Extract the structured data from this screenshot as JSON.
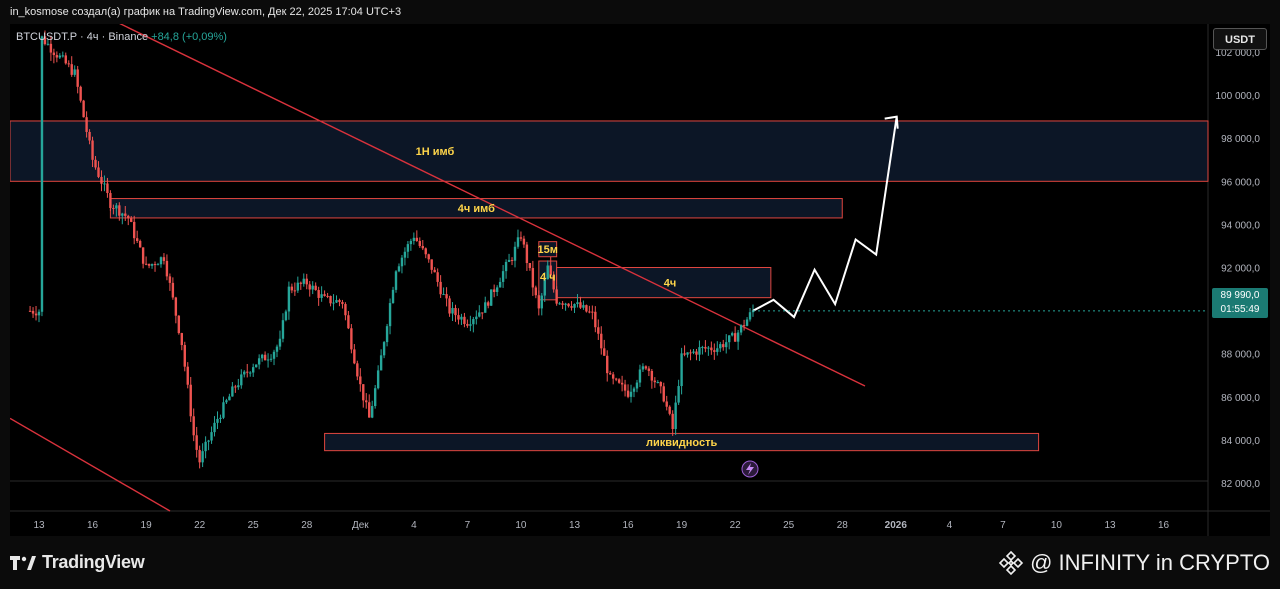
{
  "header": {
    "title": "in_kosmose создал(а) график на TradingView.com, Дек 22, 2025 17:04 UTC+3"
  },
  "symbol_bar": {
    "symbol": "BTCUSDT.P · 4ч · Binance",
    "change": "+84,8 (+0,09%)"
  },
  "currency_button": "USDT",
  "last_price": {
    "price": "89 990,0",
    "countdown": "01:55:49"
  },
  "footer": {
    "logo_text": "TradingView",
    "watermark": "@ INFINITY in CRYPTO"
  },
  "colors": {
    "up": "#26a69a",
    "down": "#ef5350",
    "zone_border": "#e0463f",
    "zone_fill": "#0c1626",
    "trendline": "#d9323c",
    "projection": "#ffffff",
    "label": "#ffd54a"
  },
  "chart_data": {
    "type": "candlestick",
    "yaxis": {
      "ticks": [
        "102 000,0",
        "100 000,0",
        "98 000,0",
        "96 000,0",
        "94 000,0",
        "92 000,0",
        "90 000,0",
        "88 000,0",
        "86 000,0",
        "84 000,0",
        "82 000,0"
      ],
      "ylim": [
        80700,
        103300
      ]
    },
    "xaxis": {
      "ticks": [
        "13",
        "16",
        "19",
        "22",
        "25",
        "28",
        "Дек",
        "4",
        "7",
        "10",
        "13",
        "16",
        "19",
        "22",
        "25",
        "28",
        "2026",
        "4",
        "7",
        "10",
        "13",
        "16"
      ]
    },
    "zones": [
      {
        "label": "1H имб",
        "price_top": 98800,
        "price_bottom": 96000,
        "x_start": "Nov 13",
        "x_end": "Jan 16"
      },
      {
        "label": "4ч имб",
        "price_top": 95200,
        "price_bottom": 94300,
        "x_start": "Nov 17",
        "x_end": "Dec 28"
      },
      {
        "label": "15м",
        "price_top": 93200,
        "price_bottom": 92500,
        "x_start": "Dec 11",
        "x_end": "Dec 12"
      },
      {
        "label": "4 ч",
        "price_top": 92300,
        "price_bottom": 90500,
        "x_start": "Dec 11",
        "x_end": "Dec 12"
      },
      {
        "label": "4ч",
        "price_top": 92000,
        "price_bottom": 90600,
        "x_start": "Dec 12",
        "x_end": "Dec 24"
      },
      {
        "label": "ликвидность",
        "price_top": 84300,
        "price_bottom": 83500,
        "x_start": "Nov 29",
        "x_end": "Jan 8"
      }
    ],
    "last_price": 89990,
    "projection_path": [
      89990,
      90500,
      89700,
      91900,
      90300,
      93300,
      92600,
      99000
    ]
  }
}
